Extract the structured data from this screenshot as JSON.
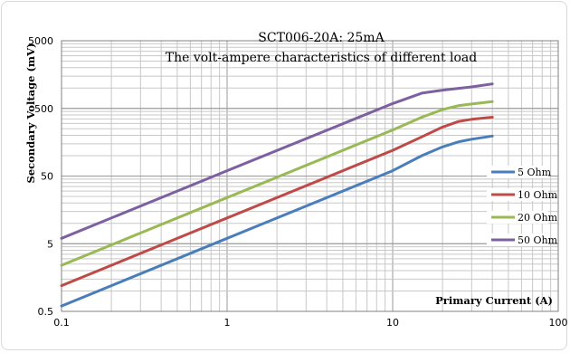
{
  "chart_data": {
    "type": "line",
    "title": "SCT006-20A: 25mA",
    "subtitle": "The volt-ampere characteristics of different load",
    "xlabel": "Primary Current (A)",
    "ylabel": "Secondary Voltage (mV)",
    "xscale": "log",
    "yscale": "log",
    "xlim": [
      0.1,
      100
    ],
    "ylim": [
      0.5,
      5000
    ],
    "xticks": [
      0.1,
      1,
      10,
      100
    ],
    "xtick_labels": [
      "0.1",
      "1",
      "10",
      "100"
    ],
    "yticks": [
      0.5,
      5,
      50,
      500,
      5000
    ],
    "ytick_labels": [
      "0.5",
      "5",
      "50",
      "500",
      "5000"
    ],
    "grid": true,
    "legend_position": "right",
    "series": [
      {
        "name": "5 Ohm",
        "color": "#4a7ebb",
        "points": [
          [
            0.1,
            0.6
          ],
          [
            1,
            6
          ],
          [
            10,
            60
          ],
          [
            15,
            100
          ],
          [
            20,
            135
          ],
          [
            25,
            160
          ],
          [
            30,
            175
          ],
          [
            40,
            195
          ]
        ]
      },
      {
        "name": "10 Ohm",
        "color": "#be4b48",
        "points": [
          [
            0.1,
            1.2
          ],
          [
            1,
            12
          ],
          [
            10,
            120
          ],
          [
            15,
            190
          ],
          [
            20,
            265
          ],
          [
            25,
            320
          ],
          [
            30,
            345
          ],
          [
            40,
            370
          ]
        ]
      },
      {
        "name": "20 Ohm",
        "color": "#98b954",
        "points": [
          [
            0.1,
            2.4
          ],
          [
            1,
            24
          ],
          [
            10,
            240
          ],
          [
            15,
            370
          ],
          [
            20,
            480
          ],
          [
            25,
            550
          ],
          [
            30,
            580
          ],
          [
            40,
            630
          ]
        ]
      },
      {
        "name": "50 Ohm",
        "color": "#7d60a0",
        "points": [
          [
            0.1,
            6
          ],
          [
            1,
            60
          ],
          [
            10,
            590
          ],
          [
            15,
            840
          ],
          [
            20,
            930
          ],
          [
            25,
            990
          ],
          [
            30,
            1040
          ],
          [
            40,
            1150
          ]
        ]
      }
    ]
  }
}
